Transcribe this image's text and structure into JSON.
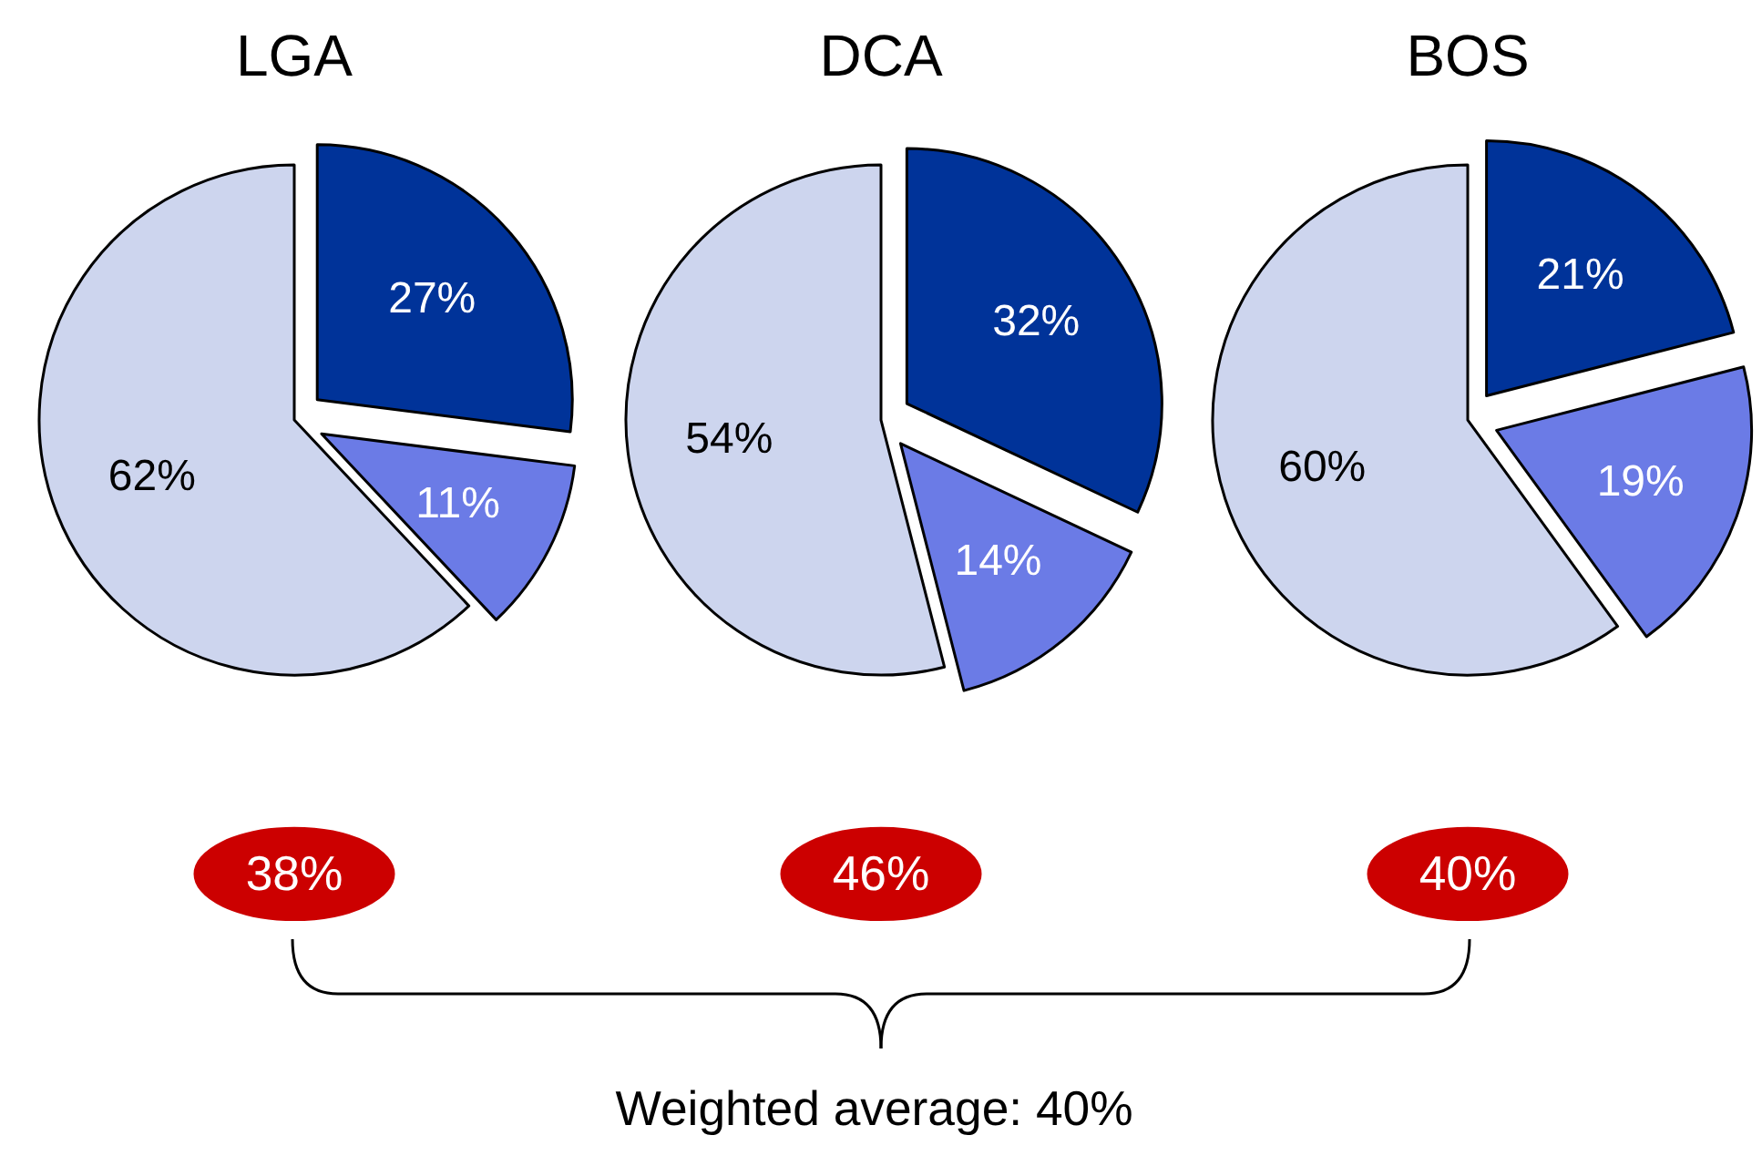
{
  "chart_data": [
    {
      "type": "pie",
      "title": "LGA",
      "categories": [
        null,
        null,
        null
      ],
      "values": [
        27,
        11,
        62
      ],
      "value_labels": [
        "27%",
        "11%",
        "62%"
      ],
      "colors": [
        "#003399",
        "#6b7be6",
        "#cdd5ee"
      ],
      "annotations": [
        "38%"
      ]
    },
    {
      "type": "pie",
      "title": "DCA",
      "categories": [
        null,
        null,
        null
      ],
      "values": [
        32,
        14,
        54
      ],
      "value_labels": [
        "32%",
        "14%",
        "54%"
      ],
      "colors": [
        "#003399",
        "#6b7be6",
        "#cdd5ee"
      ],
      "annotations": [
        "46%"
      ]
    },
    {
      "type": "pie",
      "title": "BOS",
      "categories": [
        null,
        null,
        null
      ],
      "values": [
        21,
        19,
        60
      ],
      "value_labels": [
        "21%",
        "19%",
        "60%"
      ],
      "colors": [
        "#003399",
        "#6b7be6",
        "#cdd5ee"
      ],
      "annotations": [
        "40%"
      ]
    },
    {
      "type": "other",
      "annotations": [
        "Weighted average:  40%"
      ]
    }
  ]
}
